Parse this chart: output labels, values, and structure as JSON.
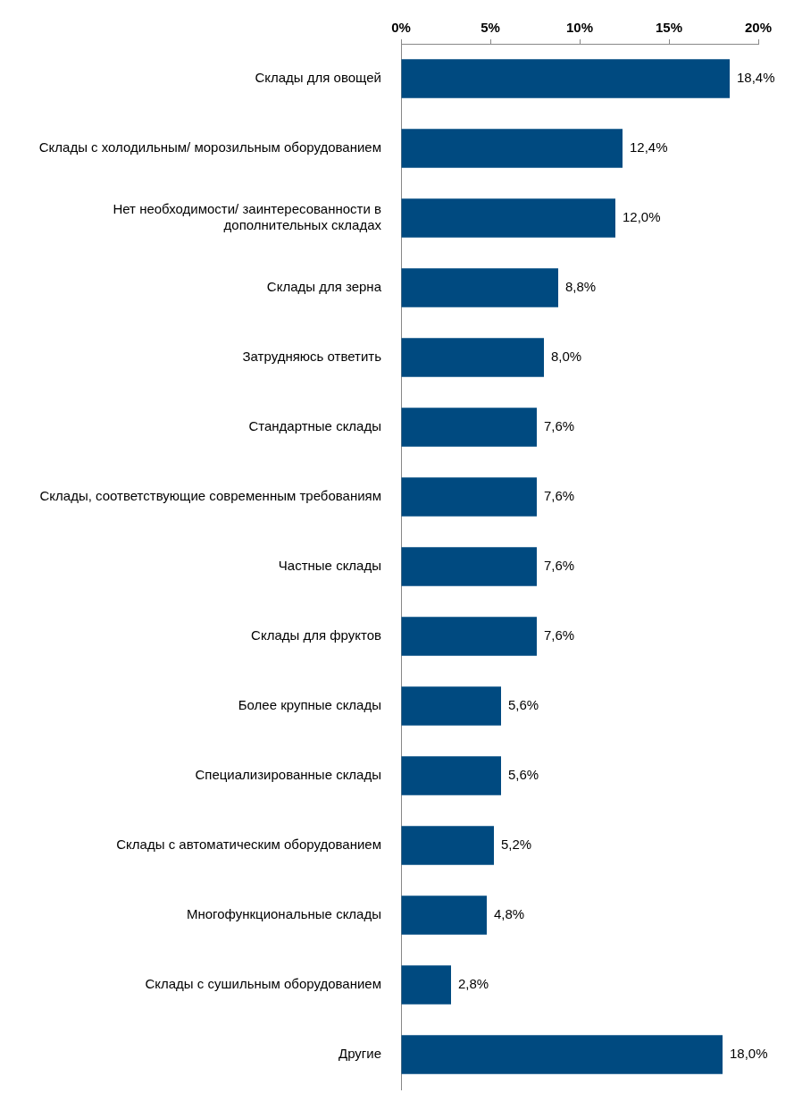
{
  "chart_data": {
    "type": "bar",
    "orientation": "horizontal",
    "categories": [
      "Склады для овощей",
      "Склады с холодильным/ морозильным оборудованием",
      "Нет необходимости/ заинтересованности в дополнительных складах",
      "Склады для зерна",
      "Затрудняюсь ответить",
      "Стандартные склады",
      "Склады, соответствующие современным требованиям",
      "Частные склады",
      "Склады для фруктов",
      "Более крупные склады",
      "Специализированные склады",
      "Склады с автоматическим оборудованием",
      "Многофункциональные склады",
      "Склады с сушильным оборудованием",
      "Другие"
    ],
    "values": [
      18.4,
      12.4,
      12.0,
      8.8,
      8.0,
      7.6,
      7.6,
      7.6,
      7.6,
      5.6,
      5.6,
      5.2,
      4.8,
      2.8,
      18.0
    ],
    "value_labels": [
      "18,4%",
      "12,4%",
      "12,0%",
      "8,8%",
      "8,0%",
      "7,6%",
      "7,6%",
      "7,6%",
      "7,6%",
      "5,6%",
      "5,6%",
      "5,2%",
      "4,8%",
      "2,8%",
      "18,0%"
    ],
    "color": "#004a80",
    "xlim": [
      0,
      20
    ],
    "xticks": [
      {
        "value": 0,
        "label": "0%"
      },
      {
        "value": 5,
        "label": "5%"
      },
      {
        "value": 10,
        "label": "10%"
      },
      {
        "value": 15,
        "label": "15%"
      },
      {
        "value": 20,
        "label": "20%"
      }
    ],
    "grid": false,
    "legend": false
  }
}
